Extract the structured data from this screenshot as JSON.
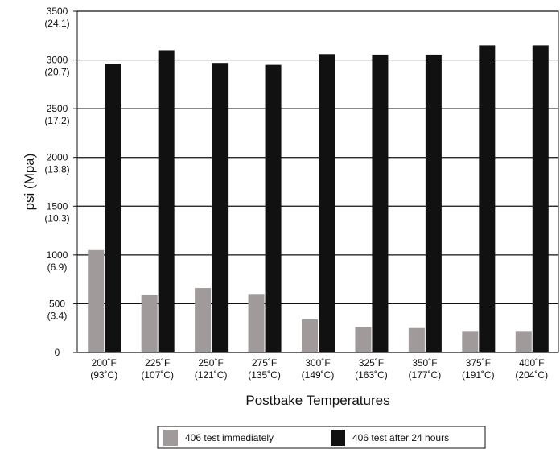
{
  "chart_data": {
    "type": "bar",
    "y_label": "psi (Mpa)",
    "x_label": "Postbake Temperatures",
    "categories": [
      "200˚F\n(93˚C)",
      "225˚F\n(107˚C)",
      "250˚F\n(121˚C)",
      "275˚F\n(135˚C)",
      "300˚F\n(149˚C)",
      "325˚F\n(163˚C)",
      "350˚F\n(177˚C)",
      "375˚F\n(191˚C)",
      "400˚F\n(204˚C)"
    ],
    "series": [
      {
        "name": "406 test immediately",
        "color": "#a09a9a",
        "values": [
          1050,
          590,
          660,
          600,
          340,
          260,
          250,
          220,
          220
        ]
      },
      {
        "name": "406 test after 24 hours",
        "color": "#111111",
        "values": [
          2960,
          3100,
          2970,
          2950,
          3060,
          3055,
          3055,
          3150,
          3150
        ]
      }
    ],
    "ylim": [
      0,
      3500
    ],
    "yticks": [
      0,
      {
        "value": 500,
        "label": "500\n(3.4)"
      },
      {
        "value": 1000,
        "label": "1000\n(6.9)"
      },
      {
        "value": 1500,
        "label": "1500\n(10.3)"
      },
      {
        "value": 2000,
        "label": "2000\n(13.8)"
      },
      {
        "value": 2500,
        "label": "2500\n(17.2)"
      },
      {
        "value": 3000,
        "label": "3000\n(20.7)"
      },
      {
        "value": 3500,
        "label": "3500\n(24.1)"
      }
    ],
    "grid": true,
    "legend": "bottom"
  }
}
